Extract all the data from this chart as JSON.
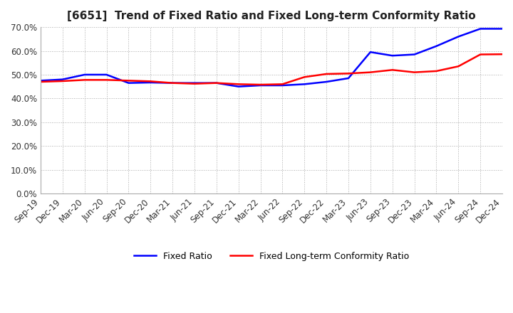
{
  "title": "[6651]  Trend of Fixed Ratio and Fixed Long-term Conformity Ratio",
  "x_labels": [
    "Sep-19",
    "Dec-19",
    "Mar-20",
    "Jun-20",
    "Sep-20",
    "Dec-20",
    "Mar-21",
    "Jun-21",
    "Sep-21",
    "Dec-21",
    "Mar-22",
    "Jun-22",
    "Sep-22",
    "Dec-22",
    "Mar-23",
    "Jun-23",
    "Sep-23",
    "Dec-23",
    "Mar-24",
    "Jun-24",
    "Sep-24",
    "Dec-24"
  ],
  "fixed_ratio": [
    0.475,
    0.48,
    0.5,
    0.5,
    0.465,
    0.467,
    0.465,
    0.465,
    0.465,
    0.45,
    0.455,
    0.455,
    0.46,
    0.47,
    0.485,
    0.595,
    0.58,
    0.585,
    0.62,
    0.66,
    0.693,
    0.693
  ],
  "fixed_lt_ratio": [
    0.47,
    0.473,
    0.478,
    0.478,
    0.475,
    0.472,
    0.465,
    0.462,
    0.465,
    0.46,
    0.458,
    0.46,
    0.49,
    0.503,
    0.505,
    0.51,
    0.52,
    0.51,
    0.515,
    0.535,
    0.585,
    0.586
  ],
  "ylim": [
    0.0,
    0.7
  ],
  "yticks": [
    0.0,
    0.1,
    0.2,
    0.3,
    0.4,
    0.5,
    0.6,
    0.7
  ],
  "fixed_ratio_color": "#0000FF",
  "fixed_lt_ratio_color": "#FF0000",
  "background_color": "#FFFFFF",
  "plot_bg_color": "#FFFFFF",
  "legend_fixed_ratio": "Fixed Ratio",
  "legend_fixed_lt_ratio": "Fixed Long-term Conformity Ratio",
  "grid_color": "#AAAAAA",
  "grid_style": ":",
  "line_width": 1.8,
  "title_fontsize": 11,
  "tick_fontsize": 8.5,
  "legend_fontsize": 9
}
